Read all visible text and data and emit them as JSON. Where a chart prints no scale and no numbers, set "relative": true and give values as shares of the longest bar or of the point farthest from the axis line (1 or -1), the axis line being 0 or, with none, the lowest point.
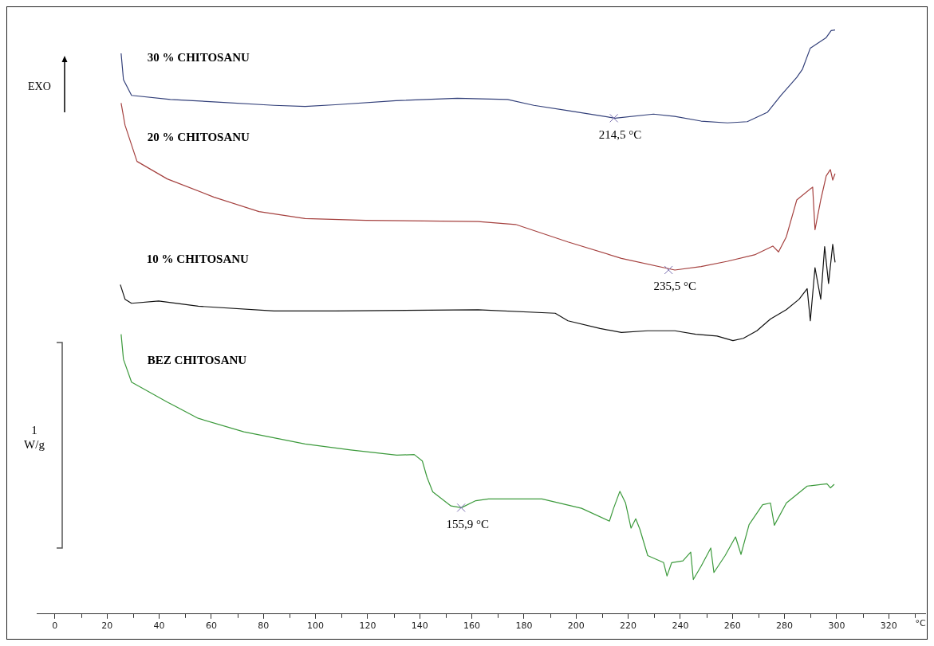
{
  "chart_data": {
    "type": "line",
    "relative": true,
    "xlabel": "°C",
    "xlim": [
      -7,
      334
    ],
    "xticks": [
      0,
      {
        "value": 10,
        "label": null
      },
      20,
      {
        "value": 30,
        "label": null
      },
      40,
      {
        "value": 50,
        "label": null
      },
      60,
      {
        "value": 70,
        "label": null
      },
      80,
      {
        "value": 90,
        "label": null
      },
      100,
      {
        "value": 110,
        "label": null
      },
      120,
      {
        "value": 130,
        "label": null
      },
      140,
      {
        "value": 150,
        "label": null
      },
      160,
      {
        "value": 170,
        "label": null
      },
      180,
      {
        "value": 190,
        "label": null
      },
      200,
      {
        "value": 210,
        "label": null
      },
      220,
      {
        "value": 230,
        "label": null
      },
      240,
      {
        "value": 250,
        "label": null
      },
      260,
      {
        "value": 270,
        "label": null
      },
      280,
      {
        "value": 290,
        "label": null
      },
      300,
      {
        "value": 310,
        "label": null
      },
      320,
      {
        "value": 330,
        "label": null
      }
    ],
    "tick_labels": "x",
    "marker": "none",
    "line_style": "solid",
    "series": [
      {
        "name": "30 % CHITOSANU",
        "color": "#33407a",
        "x": [
          25.4,
          26.3,
          29.4,
          44.3,
          60.9,
          84.1,
          96.0,
          107.6,
          130.9,
          154.4,
          173.7,
          183.8,
          196.9,
          215.0,
          229.7,
          237.9,
          248.0,
          258.1,
          265.7,
          273.4,
          278.6,
          284.7,
          286.9,
          289.9,
          293.0,
          296.0,
          297.9,
          299.4
        ],
        "values": [
          0.96,
          0.915,
          0.888,
          0.881,
          0.877,
          0.871,
          0.869,
          0.872,
          0.879,
          0.883,
          0.881,
          0.871,
          0.862,
          0.849,
          0.856,
          0.852,
          0.844,
          0.841,
          0.843,
          0.859,
          0.888,
          0.919,
          0.933,
          0.969,
          0.978,
          0.987,
          0.999,
          1.0
        ]
      },
      {
        "name": "20 % CHITOSANU",
        "color": "#a5413f",
        "x": [
          25.4,
          26.9,
          31.5,
          43.1,
          60.9,
          78.3,
          96.0,
          119.3,
          162.4,
          176.8,
          196.9,
          217.4,
          237.9,
          248.0,
          258.1,
          268.5,
          275.5,
          277.7,
          280.7,
          284.7,
          290.8,
          291.7,
          293.9,
          296.0,
          297.6,
          298.5,
          299.4
        ],
        "values": [
          0.875,
          0.837,
          0.775,
          0.745,
          0.714,
          0.689,
          0.677,
          0.674,
          0.672,
          0.667,
          0.637,
          0.609,
          0.589,
          0.595,
          0.604,
          0.615,
          0.63,
          0.62,
          0.646,
          0.709,
          0.731,
          0.658,
          0.709,
          0.75,
          0.761,
          0.743,
          0.754
        ]
      },
      {
        "name": "10 % CHITOSANU",
        "color": "#111111",
        "x": [
          25.1,
          26.9,
          29.4,
          39.8,
          55.0,
          84.1,
          107.6,
          162.4,
          192.0,
          196.9,
          209.2,
          217.4,
          227.5,
          237.9,
          245.9,
          254.1,
          260.2,
          264.2,
          269.4,
          274.6,
          280.7,
          285.6,
          288.7,
          289.9,
          291.7,
          293.9,
          295.4,
          296.9,
          298.5,
          299.4
        ],
        "values": [
          0.564,
          0.539,
          0.532,
          0.536,
          0.527,
          0.519,
          0.519,
          0.521,
          0.515,
          0.502,
          0.489,
          0.482,
          0.485,
          0.485,
          0.479,
          0.476,
          0.468,
          0.472,
          0.485,
          0.505,
          0.521,
          0.539,
          0.557,
          0.502,
          0.593,
          0.539,
          0.629,
          0.566,
          0.633,
          0.602
        ]
      },
      {
        "name": "BEZ CHITOSANU",
        "color": "#3c9a3c",
        "x": [
          25.4,
          26.3,
          29.4,
          43.1,
          55.0,
          72.5,
          96.0,
          113.5,
          131.2,
          137.9,
          141.0,
          142.8,
          145.0,
          152.0,
          156.0,
          161.5,
          166.4,
          186.9,
          202.1,
          212.8,
          214.4,
          216.8,
          219.0,
          221.1,
          222.9,
          224.5,
          227.5,
          233.6,
          234.9,
          236.7,
          241.0,
          244.0,
          245.0,
          248.0,
          251.7,
          252.9,
          257.2,
          261.2,
          263.3,
          266.4,
          271.6,
          274.6,
          276.1,
          280.7,
          288.7,
          296.3,
          297.6,
          299.1
        ],
        "values": [
          0.479,
          0.436,
          0.397,
          0.363,
          0.335,
          0.312,
          0.291,
          0.281,
          0.272,
          0.273,
          0.262,
          0.234,
          0.209,
          0.185,
          0.182,
          0.194,
          0.197,
          0.197,
          0.181,
          0.159,
          0.181,
          0.21,
          0.19,
          0.147,
          0.163,
          0.145,
          0.1,
          0.088,
          0.065,
          0.088,
          0.091,
          0.106,
          0.059,
          0.082,
          0.113,
          0.071,
          0.1,
          0.132,
          0.102,
          0.153,
          0.187,
          0.19,
          0.152,
          0.19,
          0.219,
          0.223,
          0.216,
          0.222
        ]
      }
    ],
    "annotations": [
      {
        "text": "214,5 °C",
        "x": 214.5,
        "y": 0.849
      },
      {
        "text": "235,5 °C",
        "x": 235.5,
        "y": 0.589
      },
      {
        "text": "155,9 °C",
        "x": 155.9,
        "y": 0.182
      },
      "EXO",
      "1 W/g"
    ]
  }
}
